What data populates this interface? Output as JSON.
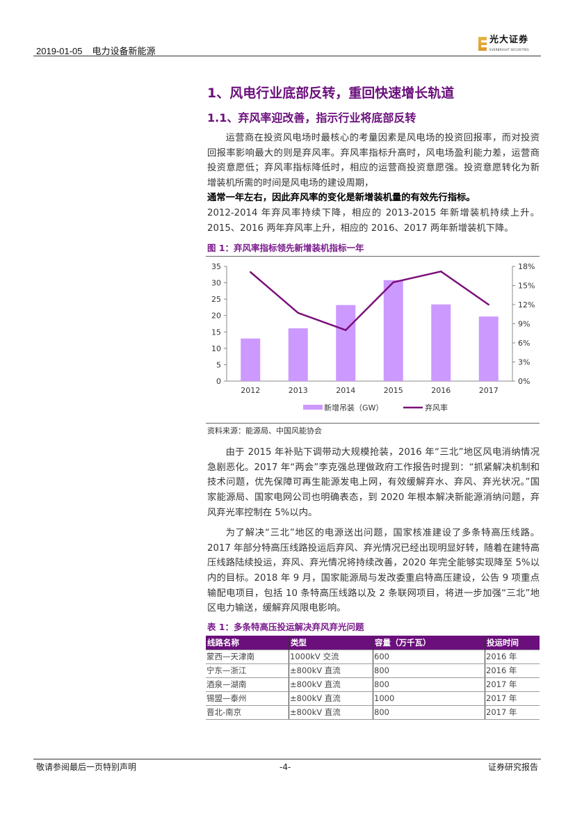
{
  "header": {
    "date": "2019-01-05",
    "sector": "电力设备新能源",
    "logo_cn": "光大证券",
    "logo_en": "EVERBRIGHT SECURITIES"
  },
  "section": {
    "h1": "1、风电行业底部反转，重回快速增长轨道",
    "h2": "1.1、弃风率迎改善，指示行业将底部反转"
  },
  "para1": {
    "text": "运营商在投资风电场时最核心的考量因素是风电场的投资回报率，而对投资回报率影响最大的则是弃风率。弃风率指标升高时，风电场盈利能力差，运营商投资意愿低；弃风率指标降低时，相应的运营商投资意愿强。投资意愿转化为新增装机所需的时间是风电场的建设周期，",
    "bold": "通常一年左右，因此弃风率的变化是新增装机量的有效先行指标。",
    "tail": "2012-2014 年弃风率持续下降，相应的 2013-2015 年新增装机持续上升。2015、2016 两年弃风率上升，相应的 2016、2017 两年新增装机下降。"
  },
  "figure": {
    "caption": "图 1：弃风率指标领先新增装机指标一年",
    "source": "资料来源：能源局、中国风能协会"
  },
  "chart_data": {
    "type": "bar+line",
    "categories": [
      "2012",
      "2013",
      "2014",
      "2015",
      "2016",
      "2017"
    ],
    "series": [
      {
        "name": "新增吊装（GW）",
        "type": "bar",
        "axis": "left",
        "color": "#cc99ff",
        "values": [
          13.0,
          16.1,
          23.2,
          30.8,
          23.4,
          19.7
        ]
      },
      {
        "name": "弃风率",
        "type": "line",
        "axis": "right",
        "color": "#7a0f7a",
        "values": [
          17.1,
          10.7,
          8.0,
          15.5,
          17.2,
          12.0
        ]
      }
    ],
    "ylim_left": [
      0,
      35
    ],
    "yticks_left": [
      "0",
      "5",
      "10",
      "15",
      "20",
      "25",
      "30",
      "35"
    ],
    "ylim_right": [
      0,
      18
    ],
    "yticks_right": [
      "0%",
      "3%",
      "6%",
      "9%",
      "12%",
      "15%",
      "18%"
    ],
    "grid": false,
    "legend": "bottom"
  },
  "para2": "由于 2015 年补贴下调带动大规模抢装，2016 年“三北”地区风电消纳情况急剧恶化。2017 年“两会”李克强总理做政府工作报告时提到：“抓紧解决机制和技术问题，优先保障可再生能源发电上网，有效缓解弃水、弃风、弃光状况。”国家能源局、国家电网公司也明确表态，到 2020 年根本解决新能源消纳问题，弃风弃光率控制在 5%以内。",
  "para3": "为了解决“三北”地区的电源送出问题，国家核准建设了多条特高压线路。2017 年部分特高压线路投运后弃风、弃光情况已经出现明显好转，随着在建特高压线路陆续投运，弃风、弃光情况将持续改善，2020 年完全能够实现降至 5%以内的目标。2018 年 9 月，国家能源局与发改委重启特高压建设，公告 9 项重点输配电项目，包括 10 条特高压线路以及 2 条联网项目，将进一步加强“三北”地区电力输送，缓解弃风限电影响。",
  "table": {
    "caption": "表 1：多条特高压投运解决弃风弃光问题",
    "headers": [
      "线路名称",
      "类型",
      "容量（万千瓦）",
      "投运时间"
    ],
    "rows": [
      [
        "蒙西—天津南",
        "1000kV 交流",
        "600",
        "2016 年"
      ],
      [
        "宁东—浙江",
        "±800kV 直流",
        "800",
        "2016 年"
      ],
      [
        "酒泉—湖南",
        "±800kV 直流",
        "800",
        "2017 年"
      ],
      [
        "锡盟—泰州",
        "±800kV 直流",
        "1000",
        "2017 年"
      ],
      [
        "晋北-南京",
        "±800kV 直流",
        "800",
        "2017 年"
      ]
    ]
  },
  "footer": {
    "left": "敬请参阅最后一页特别声明",
    "center": "-4-",
    "right": "证券研究报告"
  }
}
